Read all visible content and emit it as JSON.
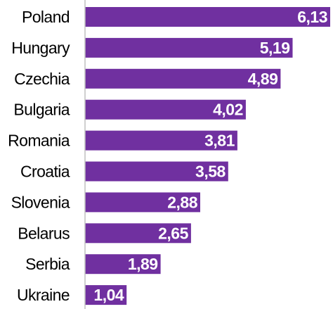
{
  "chart_data": {
    "type": "bar",
    "orientation": "horizontal",
    "categories": [
      "Poland",
      "Hungary",
      "Czechia",
      "Bulgaria",
      "Romania",
      "Croatia",
      "Slovenia",
      "Belarus",
      "Serbia",
      "Ukraine"
    ],
    "values": [
      6.13,
      5.19,
      4.89,
      4.02,
      3.81,
      3.58,
      2.88,
      2.65,
      1.89,
      1.04
    ],
    "value_labels": [
      "6,13",
      "5,19",
      "4,89",
      "4,02",
      "3,81",
      "3,58",
      "2,88",
      "2,65",
      "1,89",
      "1,04"
    ],
    "xlim": [
      0,
      6.13
    ],
    "grid": false,
    "legend": "none",
    "colors": {
      "bar": "#7030a0",
      "axis": "#bfbfbf",
      "value_text": "#ffffff",
      "category_text": "#000000"
    }
  }
}
